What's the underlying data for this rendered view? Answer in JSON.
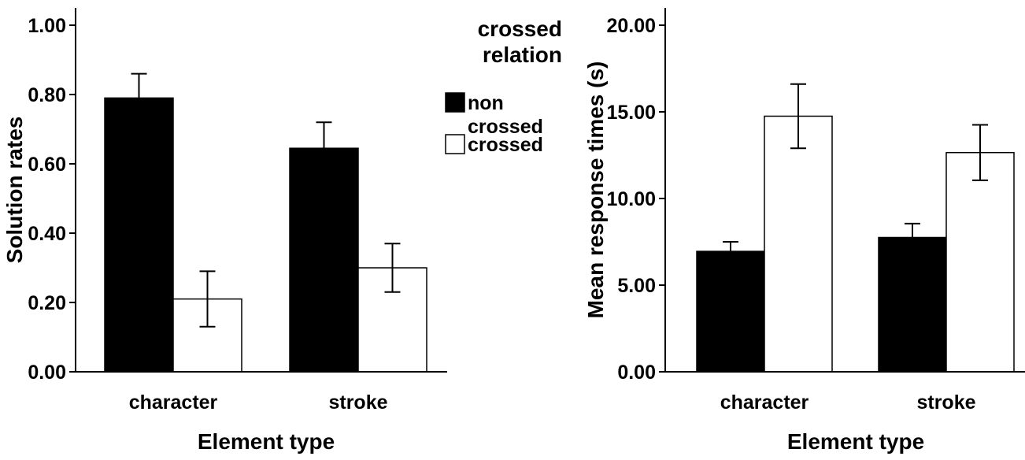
{
  "chart_data": [
    {
      "type": "bar",
      "xlabel": "Element type",
      "ylabel": "Solution rates",
      "ylim": [
        0,
        1
      ],
      "yticks": [
        "0.00",
        "0.20",
        "0.40",
        "0.60",
        "0.80",
        "1.00"
      ],
      "categories": [
        "character",
        "stroke"
      ],
      "series": [
        {
          "name": "non crossed",
          "values": [
            0.79,
            0.645
          ],
          "error_low": [
            0.72,
            0.57
          ],
          "error_high": [
            0.86,
            0.72
          ]
        },
        {
          "name": "crossed",
          "values": [
            0.21,
            0.3
          ],
          "error_low": [
            0.13,
            0.23
          ],
          "error_high": [
            0.29,
            0.37
          ]
        }
      ]
    },
    {
      "type": "bar",
      "xlabel": "Element type",
      "ylabel": "Mean response times (s)",
      "ylim": [
        0,
        20
      ],
      "yticks": [
        "0.00",
        "5.00",
        "10.00",
        "15.00",
        "20.00"
      ],
      "categories": [
        "character",
        "stroke"
      ],
      "series": [
        {
          "name": "non crossed",
          "values": [
            6.95,
            7.75
          ],
          "error_low": [
            6.4,
            6.95
          ],
          "error_high": [
            7.5,
            8.55
          ]
        },
        {
          "name": "crossed",
          "values": [
            14.75,
            12.65
          ],
          "error_low": [
            12.9,
            11.05
          ],
          "error_high": [
            16.6,
            14.25
          ]
        }
      ]
    }
  ],
  "legend": {
    "title_lines": [
      "crossed",
      "relation"
    ],
    "entries": [
      {
        "label_lines": [
          "non",
          "crossed"
        ],
        "fill": "#000000"
      },
      {
        "label_lines": [
          "crossed"
        ],
        "fill": "#ffffff"
      }
    ]
  },
  "colors": {
    "non_crossed": "#000000",
    "crossed": "#ffffff",
    "axis": "#000000"
  }
}
